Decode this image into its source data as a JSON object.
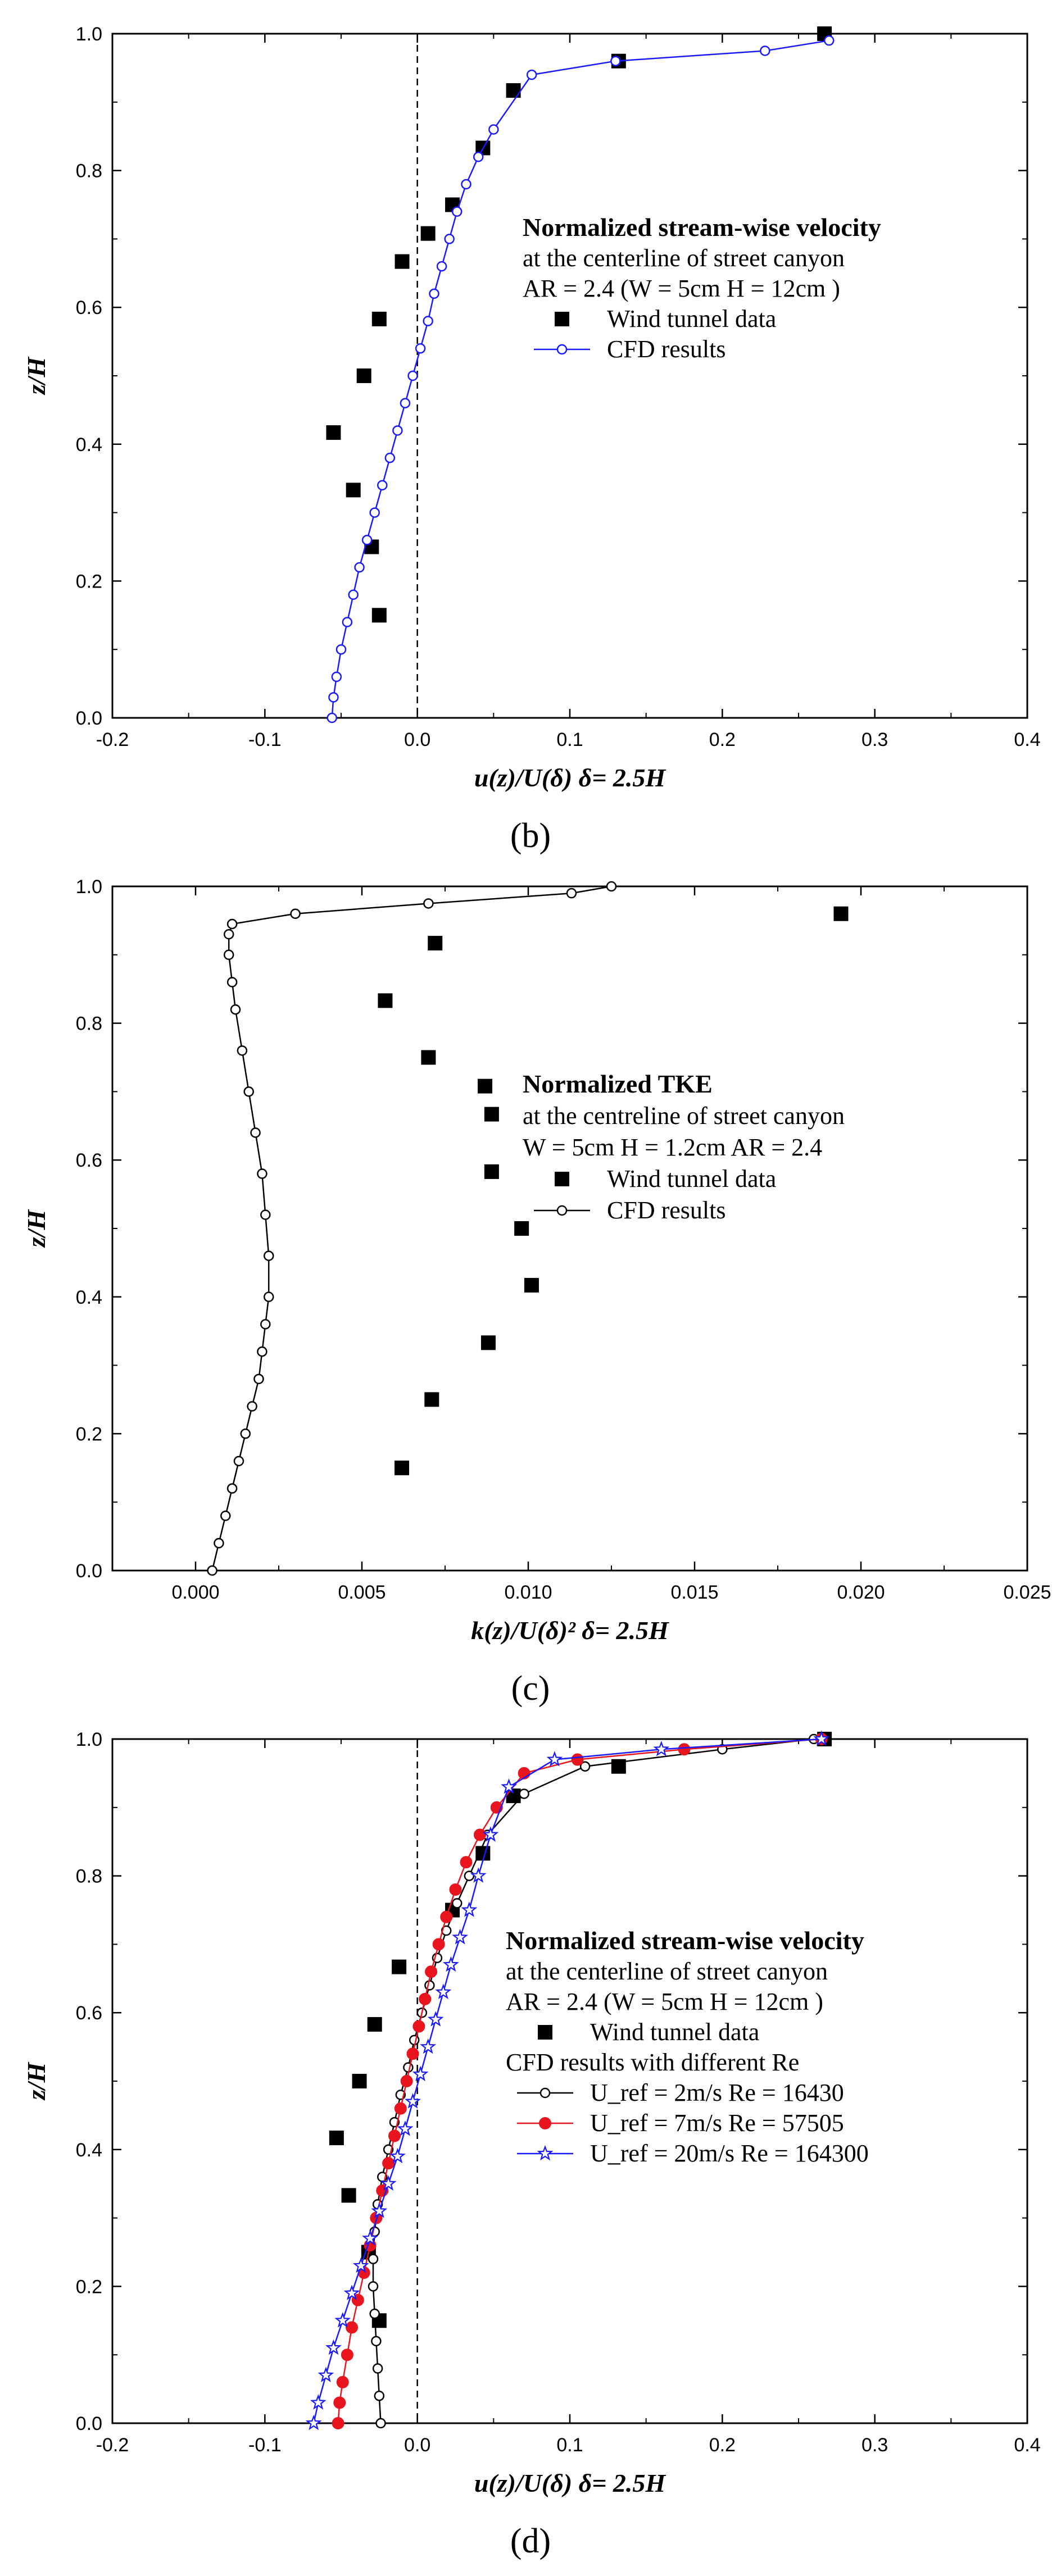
{
  "chart_data": [
    {
      "type": "line",
      "panel": "(b)",
      "xlabel": "u(z)/U(δ) δ= 2.5H",
      "ylabel": "z/H",
      "xlim": [
        -0.2,
        0.4
      ],
      "ylim": [
        0.0,
        1.0
      ],
      "xticks": [
        -0.2,
        -0.1,
        0.0,
        0.1,
        0.2,
        0.3,
        0.4
      ],
      "yticks": [
        0.0,
        0.2,
        0.4,
        0.6,
        0.8,
        1.0
      ],
      "xtick_labels": [
        "-0.2",
        "-0.1",
        "0.0",
        "0.1",
        "0.2",
        "0.3",
        "0.4"
      ],
      "ytick_labels": [
        "0.0",
        "0.2",
        "0.4",
        "0.6",
        "0.8",
        "1.0"
      ],
      "zero_line": true,
      "legend": {
        "title": "Normalized stream-wise velocity",
        "lines": [
          "at the centerline of street canyon",
          "AR = 2.4 (W = 5cm H = 12cm )"
        ],
        "entries": [
          "Wind tunnel data",
          "CFD results"
        ]
      },
      "series": [
        {
          "name": "Wind tunnel data",
          "marker": "square",
          "color": "#000000",
          "x": [
            0.267,
            0.132,
            0.063,
            0.043,
            0.023,
            0.007,
            -0.01,
            -0.025,
            -0.035,
            -0.055,
            -0.042,
            -0.03,
            -0.025
          ],
          "y": [
            1.0,
            0.96,
            0.917,
            0.833,
            0.75,
            0.708,
            0.667,
            0.583,
            0.5,
            0.417,
            0.333,
            0.25,
            0.15
          ]
        },
        {
          "name": "CFD results",
          "marker": "open-circle",
          "color": "#1a1aff",
          "x": [
            -0.056,
            -0.055,
            -0.053,
            -0.05,
            -0.046,
            -0.042,
            -0.038,
            -0.033,
            -0.028,
            -0.023,
            -0.018,
            -0.013,
            -0.008,
            -0.003,
            0.002,
            0.007,
            0.011,
            0.016,
            0.021,
            0.026,
            0.032,
            0.04,
            0.05,
            0.075,
            0.13,
            0.228,
            0.27
          ],
          "y": [
            0.0,
            0.03,
            0.06,
            0.1,
            0.14,
            0.18,
            0.22,
            0.26,
            0.3,
            0.34,
            0.38,
            0.42,
            0.46,
            0.5,
            0.54,
            0.58,
            0.62,
            0.66,
            0.7,
            0.74,
            0.78,
            0.82,
            0.86,
            0.94,
            0.96,
            0.975,
            0.99
          ]
        }
      ]
    },
    {
      "type": "line",
      "panel": "(c)",
      "xlabel": "k(z)/U(δ)² δ= 2.5H",
      "ylabel": "z/H",
      "xlim": [
        -0.0025,
        0.025
      ],
      "ylim": [
        0.0,
        1.0
      ],
      "xticks": [
        0.0,
        0.005,
        0.01,
        0.015,
        0.02,
        0.025
      ],
      "yticks": [
        0.0,
        0.2,
        0.4,
        0.6,
        0.8,
        1.0
      ],
      "xtick_labels": [
        "0.000",
        "0.005",
        "0.010",
        "0.015",
        "0.020",
        "0.025"
      ],
      "ytick_labels": [
        "0.0",
        "0.2",
        "0.4",
        "0.6",
        "0.8",
        "1.0"
      ],
      "zero_line": false,
      "legend": {
        "title": "Normalized TKE",
        "lines": [
          "at the centreline of street canyon",
          "W = 5cm H = 1.2cm AR = 2.4"
        ],
        "entries": [
          "Wind tunnel data",
          "CFD results"
        ]
      },
      "series": [
        {
          "name": "Wind tunnel data",
          "marker": "square",
          "color": "#000000",
          "x": [
            0.0194,
            0.0072,
            0.0057,
            0.007,
            0.0087,
            0.0089,
            0.0089,
            0.0098,
            0.0101,
            0.0088,
            0.0071,
            0.0062
          ],
          "y": [
            0.96,
            0.917,
            0.833,
            0.75,
            0.708,
            0.667,
            0.583,
            0.5,
            0.417,
            0.333,
            0.25,
            0.15
          ]
        },
        {
          "name": "CFD results",
          "marker": "open-circle",
          "color": "#000000",
          "x": [
            0.0005,
            0.0007,
            0.0009,
            0.0011,
            0.0013,
            0.0015,
            0.0017,
            0.0019,
            0.002,
            0.0021,
            0.0022,
            0.0022,
            0.0021,
            0.002,
            0.0018,
            0.0016,
            0.0014,
            0.0012,
            0.0011,
            0.001,
            0.001,
            0.0011,
            0.003,
            0.007,
            0.0113,
            0.0125
          ],
          "y": [
            0.0,
            0.04,
            0.08,
            0.12,
            0.16,
            0.2,
            0.24,
            0.28,
            0.32,
            0.36,
            0.4,
            0.46,
            0.52,
            0.58,
            0.64,
            0.7,
            0.76,
            0.82,
            0.86,
            0.9,
            0.93,
            0.945,
            0.96,
            0.975,
            0.99,
            1.0
          ]
        }
      ]
    },
    {
      "type": "line",
      "panel": "(d)",
      "xlabel": "u(z)/U(δ) δ= 2.5H",
      "ylabel": "z/H",
      "xlim": [
        -0.2,
        0.4
      ],
      "ylim": [
        0.0,
        1.0
      ],
      "xticks": [
        -0.2,
        -0.1,
        0.0,
        0.1,
        0.2,
        0.3,
        0.4
      ],
      "yticks": [
        0.0,
        0.2,
        0.4,
        0.6,
        0.8,
        1.0
      ],
      "xtick_labels": [
        "-0.2",
        "-0.1",
        "0.0",
        "0.1",
        "0.2",
        "0.3",
        "0.4"
      ],
      "ytick_labels": [
        "0.0",
        "0.2",
        "0.4",
        "0.6",
        "0.8",
        "1.0"
      ],
      "zero_line": true,
      "legend": {
        "title": "Normalized stream-wise velocity",
        "lines": [
          "at the centerline of street canyon",
          "AR = 2.4 (W = 5cm H = 12cm )"
        ],
        "entries": [
          "Wind tunnel data",
          "CFD results with different Re",
          "U_ref = 2m/s Re = 16430",
          "U_ref = 7m/s Re = 57505",
          "U_ref = 20m/s Re = 164300"
        ]
      },
      "series": [
        {
          "name": "Wind tunnel data",
          "marker": "square",
          "color": "#000000",
          "x": [
            0.267,
            0.132,
            0.063,
            0.043,
            0.023,
            -0.012,
            -0.028,
            -0.038,
            -0.053,
            -0.045,
            -0.032,
            -0.025
          ],
          "y": [
            1.0,
            0.96,
            0.917,
            0.833,
            0.75,
            0.667,
            0.583,
            0.5,
            0.417,
            0.333,
            0.25,
            0.15
          ]
        },
        {
          "name": "U_ref = 2m/s Re = 16430",
          "marker": "open-circle",
          "color": "#000000",
          "x": [
            -0.024,
            -0.025,
            -0.026,
            -0.027,
            -0.028,
            -0.029,
            -0.029,
            -0.028,
            -0.026,
            -0.023,
            -0.019,
            -0.015,
            -0.011,
            -0.006,
            -0.002,
            0.003,
            0.008,
            0.013,
            0.019,
            0.026,
            0.034,
            0.046,
            0.07,
            0.11,
            0.2,
            0.26
          ],
          "y": [
            0.0,
            0.04,
            0.08,
            0.12,
            0.16,
            0.2,
            0.24,
            0.28,
            0.32,
            0.36,
            0.4,
            0.44,
            0.48,
            0.52,
            0.56,
            0.6,
            0.64,
            0.68,
            0.72,
            0.76,
            0.8,
            0.86,
            0.92,
            0.96,
            0.985,
            1.0
          ]
        },
        {
          "name": "U_ref = 7m/s Re = 57505",
          "marker": "filled-circle",
          "color": "#e8141e",
          "x": [
            -0.052,
            -0.051,
            -0.049,
            -0.046,
            -0.043,
            -0.039,
            -0.035,
            -0.031,
            -0.027,
            -0.023,
            -0.019,
            -0.015,
            -0.011,
            -0.007,
            -0.003,
            0.001,
            0.005,
            0.009,
            0.014,
            0.019,
            0.025,
            0.032,
            0.041,
            0.052,
            0.07,
            0.105,
            0.175,
            0.265
          ],
          "y": [
            0.0,
            0.03,
            0.06,
            0.1,
            0.14,
            0.18,
            0.22,
            0.26,
            0.3,
            0.34,
            0.38,
            0.42,
            0.46,
            0.5,
            0.54,
            0.58,
            0.62,
            0.66,
            0.7,
            0.74,
            0.78,
            0.82,
            0.86,
            0.9,
            0.95,
            0.97,
            0.985,
            1.0
          ]
        },
        {
          "name": "U_ref = 20m/s Re = 164300",
          "marker": "open-star",
          "color": "#1a1aff",
          "x": [
            -0.068,
            -0.065,
            -0.06,
            -0.055,
            -0.049,
            -0.043,
            -0.037,
            -0.031,
            -0.025,
            -0.019,
            -0.013,
            -0.008,
            -0.003,
            0.002,
            0.007,
            0.012,
            0.017,
            0.022,
            0.028,
            0.034,
            0.04,
            0.048,
            0.06,
            0.09,
            0.16,
            0.265
          ],
          "y": [
            0.0,
            0.03,
            0.07,
            0.11,
            0.15,
            0.19,
            0.23,
            0.27,
            0.31,
            0.35,
            0.39,
            0.43,
            0.47,
            0.51,
            0.55,
            0.59,
            0.63,
            0.67,
            0.71,
            0.75,
            0.8,
            0.86,
            0.93,
            0.97,
            0.985,
            1.0
          ]
        }
      ]
    }
  ]
}
